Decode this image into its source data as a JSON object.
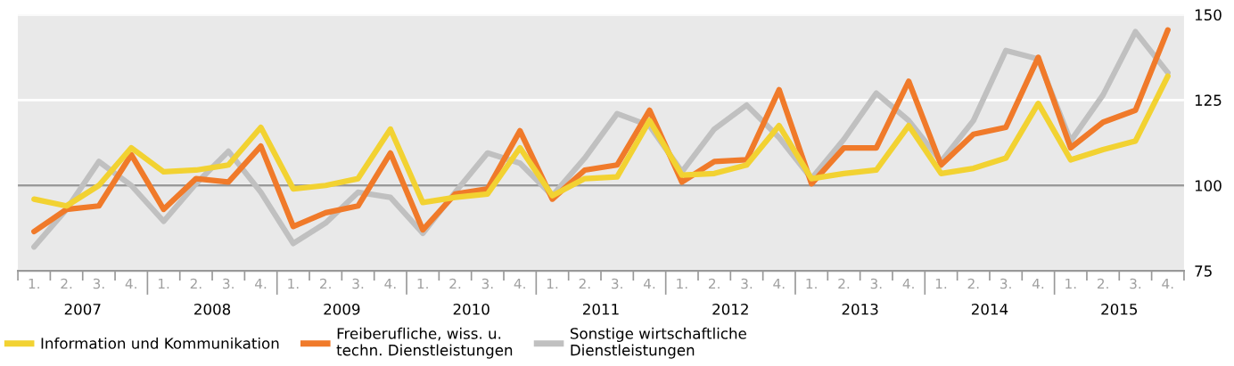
{
  "chart_data": {
    "type": "line",
    "categories": [
      "1.",
      "2.",
      "3.",
      "4.",
      "1.",
      "2.",
      "3.",
      "4.",
      "1.",
      "2.",
      "3.",
      "4.",
      "1.",
      "2.",
      "3.",
      "4.",
      "1.",
      "2.",
      "3.",
      "4.",
      "1.",
      "2.",
      "3.",
      "4.",
      "1.",
      "2.",
      "3.",
      "4.",
      "1.",
      "2.",
      "3.",
      "4.",
      "1.",
      "2.",
      "3.",
      "4."
    ],
    "annotations": [
      "2007",
      "2008",
      "2009",
      "2010",
      "2011",
      "2012",
      "2013",
      "2014",
      "2015"
    ],
    "series": [
      {
        "name": "Information und Kommunikation",
        "color": "#f2d232",
        "values": [
          96,
          94,
          100,
          111,
          104,
          104.5,
          106,
          117,
          99,
          100,
          102,
          116.5,
          95,
          96.5,
          97.5,
          111,
          97,
          102,
          102.5,
          119,
          103,
          103.5,
          106,
          117.5,
          102,
          103.5,
          104.5,
          117.5,
          103.5,
          105,
          108,
          124,
          107.5,
          110.5,
          113,
          132
        ]
      },
      {
        "name": "Freiberufliche, wiss. u.\ntechn. Dienstleistungen",
        "color": "#f07a2a",
        "values": [
          86.5,
          93,
          94,
          109,
          93,
          102,
          101,
          111.5,
          88,
          92,
          94,
          109.5,
          87,
          97.5,
          99,
          116,
          96,
          104.5,
          106,
          122,
          101,
          107,
          107.5,
          128,
          100.5,
          111,
          111,
          130.5,
          106,
          115,
          117,
          137.5,
          111,
          118.5,
          122,
          145.5
        ]
      },
      {
        "name": "Sonstige wirtschaftliche\nDienstleistungen",
        "color": "#c0c0c0",
        "values": [
          82,
          93,
          107,
          100,
          89.5,
          100.5,
          110,
          98,
          83,
          89,
          98,
          96.5,
          86,
          98,
          109.5,
          106.5,
          97,
          108,
          121,
          117.5,
          104,
          116.5,
          123.5,
          114,
          102,
          113.5,
          127,
          119,
          107,
          119,
          139.5,
          137,
          113,
          126.5,
          145,
          133
        ]
      }
    ],
    "ylim": [
      75,
      150
    ],
    "yticks": [
      75,
      100,
      125,
      150
    ],
    "grid": "y",
    "ref_lines": [
      {
        "axis": "y",
        "value": 100,
        "color": "#999999"
      }
    ],
    "legend": "bottom",
    "line_style": "solid",
    "marker": "none"
  }
}
